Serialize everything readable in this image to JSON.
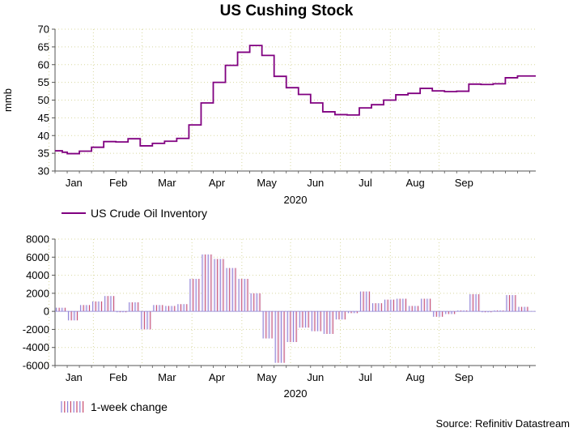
{
  "title": "US Cushing Stock",
  "source": "Source: Refinitiv Datastream",
  "colors": {
    "line": "#800080",
    "bar_edge_a": "#8c7fd6",
    "bar_edge_b": "#c94b6b",
    "bar_fill": "#f3eefa",
    "grid": "#d8d8a0",
    "axis": "#555555"
  },
  "chart_data": [
    {
      "type": "line",
      "title": "US Cushing Stock",
      "ylabel": "mmb",
      "xlabel": "2020",
      "ylim": [
        30,
        70
      ],
      "yticks": [
        30,
        35,
        40,
        45,
        50,
        55,
        60,
        65,
        70
      ],
      "xlim": [
        0,
        39.5
      ],
      "months": [
        "Jan",
        "Feb",
        "Mar",
        "Apr",
        "May",
        "Jun",
        "Jul",
        "Aug",
        "Sep"
      ],
      "month_centers": [
        1.55,
        5.2,
        9.2,
        13.3,
        17.4,
        21.4,
        25.5,
        29.6,
        33.6
      ],
      "grid": true,
      "legend": "US Crude Oil Inventory",
      "series": [
        {
          "name": "US Crude Oil Inventory",
          "x": [
            0,
            0.6,
            1,
            2,
            3,
            4,
            5,
            6,
            7,
            8,
            9,
            10,
            11,
            12,
            13,
            14,
            15,
            16,
            17,
            18,
            19,
            20,
            21,
            22,
            23,
            24,
            25,
            26,
            27,
            28,
            29,
            30,
            31,
            32,
            33,
            34,
            35,
            36,
            37,
            38,
            39.5
          ],
          "y": [
            35.7,
            35.3,
            34.9,
            35.6,
            36.7,
            38.3,
            38.2,
            39.1,
            37.1,
            37.8,
            38.4,
            39.2,
            43.0,
            49.2,
            55.0,
            59.8,
            63.5,
            65.4,
            62.6,
            56.7,
            53.5,
            51.6,
            49.2,
            46.7,
            45.9,
            45.8,
            47.8,
            48.7,
            50.0,
            51.5,
            51.9,
            53.3,
            52.6,
            52.4,
            52.5,
            54.5,
            54.4,
            54.6,
            56.3,
            56.8,
            56.8
          ]
        }
      ]
    },
    {
      "type": "bar",
      "title": "",
      "ylabel": "",
      "xlabel": "2020",
      "ylim": [
        -6000,
        8000
      ],
      "yticks": [
        -6000,
        -4000,
        -2000,
        0,
        2000,
        4000,
        6000,
        8000
      ],
      "xlim": [
        0,
        39.5
      ],
      "months": [
        "Jan",
        "Feb",
        "Mar",
        "Apr",
        "May",
        "Jun",
        "Jul",
        "Aug",
        "Sep"
      ],
      "month_centers": [
        1.55,
        5.2,
        9.2,
        13.3,
        17.4,
        21.4,
        25.5,
        29.6,
        33.6
      ],
      "grid": true,
      "legend": "1-week change",
      "series": [
        {
          "name": "1-week change",
          "x": [
            0,
            1,
            2,
            3,
            4,
            5,
            6,
            7,
            8,
            9,
            10,
            11,
            12,
            13,
            14,
            15,
            16,
            17,
            18,
            19,
            20,
            21,
            22,
            23,
            24,
            25,
            26,
            27,
            28,
            29,
            30,
            31,
            32,
            33,
            34,
            35,
            36,
            37,
            38
          ],
          "values": [
            400,
            -1000,
            700,
            1100,
            1700,
            -100,
            1000,
            -2000,
            700,
            600,
            800,
            3600,
            6300,
            5800,
            4800,
            3600,
            2000,
            -3000,
            -5700,
            -3400,
            -1800,
            -2200,
            -2500,
            -900,
            -200,
            2200,
            900,
            1300,
            1400,
            600,
            1400,
            -600,
            -300,
            100,
            1900,
            -100,
            100,
            1800,
            500
          ]
        }
      ]
    }
  ]
}
